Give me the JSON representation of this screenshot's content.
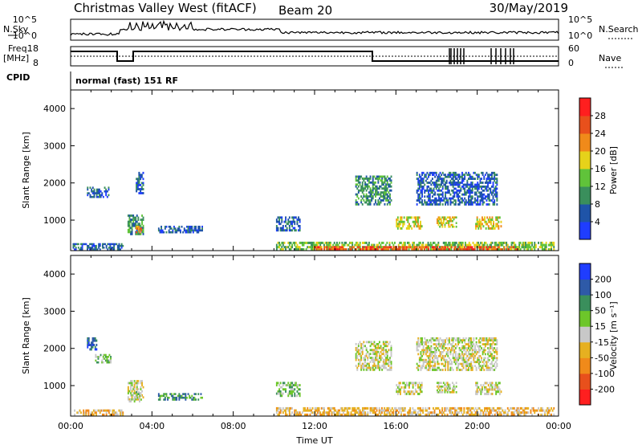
{
  "header": {
    "title": "Christmas Valley West (fitACF)",
    "beam": "Beam 20",
    "date": "30/May/2019"
  },
  "top_panels": {
    "nsky_label": "N.Sky",
    "nsearch_label": "N.Search",
    "nsky_ticks": [
      "10^5",
      "10^0"
    ],
    "nsearch_ticks": [
      "10^5",
      "10^0"
    ],
    "freq_label": "Freq.",
    "freq_unit": "[MHz]",
    "freq_ticks": [
      "18",
      "8"
    ],
    "nave_label": "Nave",
    "nave_ticks": [
      "60",
      "0"
    ],
    "cpid_label": "CPID",
    "cpid_text": "normal (fast) 151 RF"
  },
  "colors": {
    "power": [
      "#1f3dff",
      "#1f54a8",
      "#3a8f5c",
      "#60c33a",
      "#e6d21a",
      "#f08a1a",
      "#e8501c",
      "#ff1f1f"
    ],
    "velocity": [
      "#1f3dff",
      "#2e5aa8",
      "#3a8f5c",
      "#6dc62a",
      "#c8c8c8",
      "#e6b020",
      "#f08a1a",
      "#e8501c",
      "#ff1f1f"
    ]
  },
  "chart_data": [
    {
      "type": "heatmap",
      "name": "power",
      "xlabel": "",
      "ylabel": "Slant Range [km]",
      "xlim": [
        0,
        24
      ],
      "ylim": [
        180,
        4500
      ],
      "yticks": [
        "1000",
        "2000",
        "3000",
        "4000"
      ],
      "colorbar_label": "Power [dB]",
      "colorbar_ticks": [
        "4",
        "8",
        "12",
        "16",
        "20",
        "24",
        "28"
      ],
      "regions": [
        {
          "t0": 0.1,
          "t1": 2.6,
          "r0": 190,
          "r1": 380,
          "level": 1
        },
        {
          "t0": 0.8,
          "t1": 1.9,
          "r0": 1600,
          "r1": 1900,
          "level": 1
        },
        {
          "t0": 2.8,
          "t1": 3.6,
          "r0": 600,
          "r1": 1150,
          "level": 2
        },
        {
          "t0": 3.2,
          "t1": 3.5,
          "r0": 650,
          "r1": 850,
          "level": 5
        },
        {
          "t0": 3.2,
          "t1": 3.6,
          "r0": 1700,
          "r1": 2300,
          "level": 1
        },
        {
          "t0": 4.3,
          "t1": 6.5,
          "r0": 650,
          "r1": 850,
          "level": 1
        },
        {
          "t0": 10.1,
          "t1": 11.3,
          "r0": 700,
          "r1": 1100,
          "level": 1
        },
        {
          "t0": 10.1,
          "t1": 23.8,
          "r0": 190,
          "r1": 420,
          "level": 3
        },
        {
          "t0": 12.0,
          "t1": 22.0,
          "r0": 190,
          "r1": 300,
          "level": 6
        },
        {
          "t0": 14.0,
          "t1": 15.8,
          "r0": 1400,
          "r1": 2200,
          "level": 2
        },
        {
          "t0": 16.0,
          "t1": 17.3,
          "r0": 750,
          "r1": 1100,
          "level": 4
        },
        {
          "t0": 18.0,
          "t1": 19.0,
          "r0": 800,
          "r1": 1100,
          "level": 4
        },
        {
          "t0": 17.0,
          "t1": 21.0,
          "r0": 1400,
          "r1": 2300,
          "level": 1
        },
        {
          "t0": 19.9,
          "t1": 21.2,
          "r0": 750,
          "r1": 1100,
          "level": 4
        }
      ]
    },
    {
      "type": "heatmap",
      "name": "velocity",
      "xlabel": "Time UT",
      "ylabel": "Slant Range [km]",
      "xlim": [
        0,
        24
      ],
      "ylim": [
        180,
        4500
      ],
      "yticks": [
        "1000",
        "2000",
        "3000",
        "4000"
      ],
      "xticks": [
        "00:00",
        "04:00",
        "08:00",
        "12:00",
        "16:00",
        "20:00",
        "00:00"
      ],
      "colorbar_label": "Velocity [m s⁻¹]",
      "colorbar_ticks": [
        "200",
        "100",
        "50",
        "15",
        "-15",
        "-50",
        "-100",
        "-200"
      ],
      "regions": [
        {
          "t0": 0.1,
          "t1": 2.6,
          "r0": 190,
          "r1": 360,
          "level": 3
        },
        {
          "t0": 0.8,
          "t1": 1.3,
          "r0": 1950,
          "r1": 2300,
          "level": 7
        },
        {
          "t0": 1.2,
          "t1": 2.0,
          "r0": 1600,
          "r1": 1850,
          "level": 5
        },
        {
          "t0": 2.8,
          "t1": 3.6,
          "r0": 550,
          "r1": 1150,
          "level": 4
        },
        {
          "t0": 3.2,
          "t1": 3.5,
          "r0": 600,
          "r1": 850,
          "level": 5
        },
        {
          "t0": 4.3,
          "t1": 6.5,
          "r0": 600,
          "r1": 800,
          "level": 6
        },
        {
          "t0": 10.1,
          "t1": 11.3,
          "r0": 700,
          "r1": 1100,
          "level": 5
        },
        {
          "t0": 10.1,
          "t1": 23.8,
          "r0": 190,
          "r1": 420,
          "level": 3
        },
        {
          "t0": 14.0,
          "t1": 15.8,
          "r0": 1400,
          "r1": 2200,
          "level": 4
        },
        {
          "t0": 16.0,
          "t1": 17.3,
          "r0": 750,
          "r1": 1100,
          "level": 4
        },
        {
          "t0": 18.0,
          "t1": 19.0,
          "r0": 800,
          "r1": 1100,
          "level": 4
        },
        {
          "t0": 17.0,
          "t1": 21.0,
          "r0": 1400,
          "r1": 2300,
          "level": 4
        },
        {
          "t0": 19.9,
          "t1": 21.2,
          "r0": 750,
          "r1": 1100,
          "level": 4
        }
      ]
    }
  ]
}
